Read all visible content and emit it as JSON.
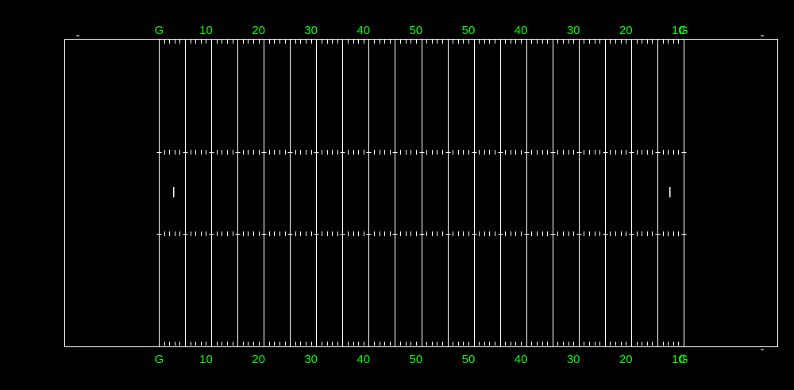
{
  "field": {
    "background_color": "#000000",
    "line_color": "#ffffff",
    "label_color": "#00ff00",
    "yard_labels": [
      "G",
      "10",
      "20",
      "30",
      "40",
      "50",
      "50",
      "40",
      "30",
      "20",
      "10",
      "G"
    ]
  }
}
